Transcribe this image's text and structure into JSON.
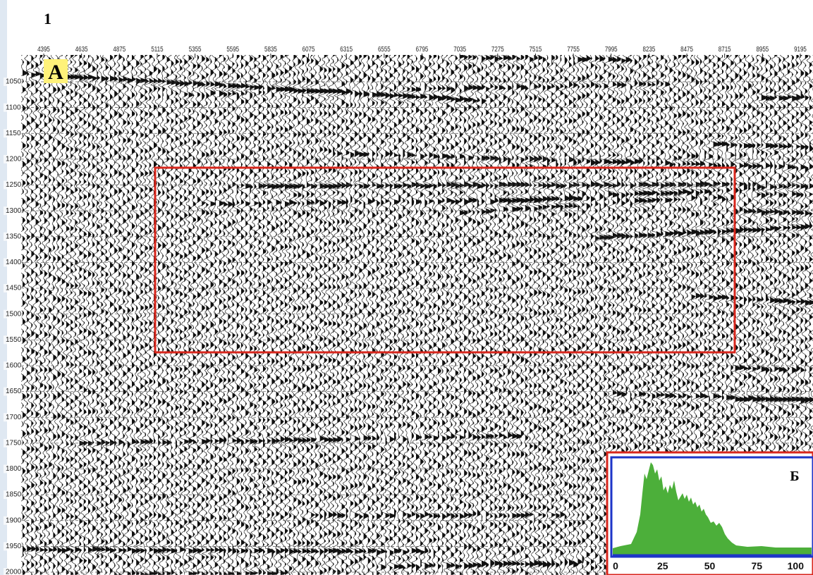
{
  "figure_number": "1",
  "panel_a": {
    "label": "А",
    "x_ticks": [
      4395,
      4635,
      4875,
      5115,
      5355,
      5595,
      5835,
      6075,
      6315,
      6555,
      6795,
      7035,
      7275,
      7515,
      7755,
      7995,
      8235,
      8475,
      8715,
      8955,
      9195
    ],
    "y_ticks": [
      1050,
      1100,
      1150,
      1200,
      1250,
      1300,
      1350,
      1400,
      1450,
      1500,
      1550,
      1600,
      1650,
      1700,
      1750,
      1800,
      1850,
      1900,
      1950,
      2000
    ]
  },
  "panel_b": {
    "label": "Б",
    "x_ticks": [
      0,
      25,
      50,
      75,
      100
    ]
  }
}
